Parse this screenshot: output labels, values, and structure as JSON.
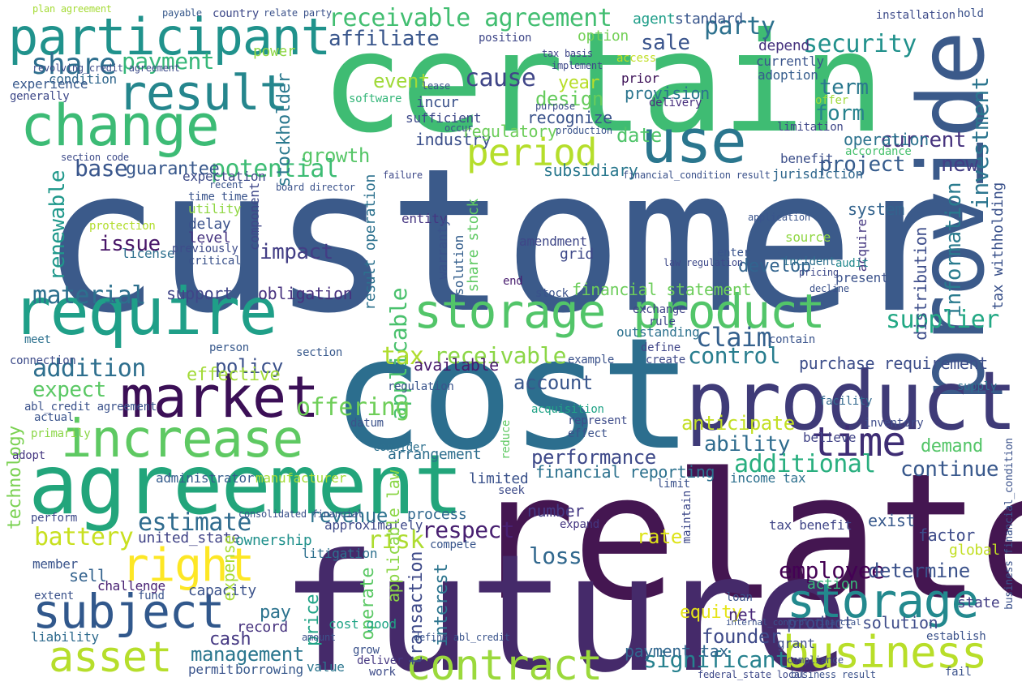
{
  "words": [
    {
      "text": "customer",
      "color": "#3b5a8a"
    },
    {
      "text": "cost",
      "color": "#2c6e8e"
    },
    {
      "text": "relate",
      "color": "#441651"
    },
    {
      "text": "future",
      "color": "#452a6a"
    },
    {
      "text": "certain",
      "color": "#3fbc73"
    },
    {
      "text": "provide",
      "color": "#3b5a8a"
    },
    {
      "text": "agreement",
      "color": "#22a57b"
    },
    {
      "text": "product",
      "color": "#3f3b78"
    },
    {
      "text": "storage product",
      "color": "#52c569"
    },
    {
      "text": "require",
      "color": "#1f9f88"
    },
    {
      "text": "market",
      "color": "#3b0f56"
    },
    {
      "text": "increase",
      "color": "#5ec962"
    },
    {
      "text": "participant",
      "color": "#20928c"
    },
    {
      "text": "change",
      "color": "#3cbb75"
    },
    {
      "text": "result",
      "color": "#25868d"
    },
    {
      "text": "business",
      "color": "#b8de29"
    },
    {
      "text": "storage",
      "color": "#23898e"
    },
    {
      "text": "subject",
      "color": "#31588c"
    },
    {
      "text": "contract",
      "color": "#9bd93c"
    },
    {
      "text": "asset",
      "color": "#b6de2b"
    },
    {
      "text": "right",
      "color": "#fde725"
    },
    {
      "text": "use",
      "color": "#2a768e"
    },
    {
      "text": "period",
      "color": "#b5de2b"
    },
    {
      "text": "time",
      "color": "#3e2d74"
    },
    {
      "text": "share",
      "color": "#2e6f8e"
    },
    {
      "text": "payment",
      "color": "#35b779"
    },
    {
      "text": "receivable agreement",
      "color": "#42be71"
    },
    {
      "text": "security",
      "color": "#21918c"
    },
    {
      "text": "party",
      "color": "#2d718e"
    },
    {
      "text": "affiliate",
      "color": "#39568c"
    },
    {
      "text": "sale",
      "color": "#3a548c"
    },
    {
      "text": "investment",
      "color": "#2b758e"
    },
    {
      "text": "current",
      "color": "#46337e"
    },
    {
      "text": "term",
      "color": "#2a788e"
    },
    {
      "text": "form",
      "color": "#26828e"
    },
    {
      "text": "cause",
      "color": "#404688"
    },
    {
      "text": "event",
      "color": "#a0da39"
    },
    {
      "text": "design",
      "color": "#66cc5d"
    },
    {
      "text": "year",
      "color": "#b8de29"
    },
    {
      "text": "recognize",
      "color": "#3a538b"
    },
    {
      "text": "growth",
      "color": "#56c667"
    },
    {
      "text": "potential",
      "color": "#3dbc74"
    },
    {
      "text": "base",
      "color": "#39568c"
    },
    {
      "text": "guarantee",
      "color": "#38588c"
    },
    {
      "text": "renewable",
      "color": "#1f988b"
    },
    {
      "text": "issue",
      "color": "#481668"
    },
    {
      "text": "impact",
      "color": "#433e85"
    },
    {
      "text": "material",
      "color": "#2d708e"
    },
    {
      "text": "support",
      "color": "#404588"
    },
    {
      "text": "obligation",
      "color": "#46317e"
    },
    {
      "text": "applicable",
      "color": "#4ac16d"
    },
    {
      "text": "date",
      "color": "#50c46a"
    },
    {
      "text": "project",
      "color": "#365c8d"
    },
    {
      "text": "new",
      "color": "#433e85"
    },
    {
      "text": "supplier",
      "color": "#22a884"
    },
    {
      "text": "claim",
      "color": "#34608d"
    },
    {
      "text": "control",
      "color": "#287d8e"
    },
    {
      "text": "tax",
      "color": "#b0dd2f"
    },
    {
      "text": "receivable",
      "color": "#8bd646"
    },
    {
      "text": "policy",
      "color": "#3b518b"
    },
    {
      "text": "addition",
      "color": "#2e6f8e"
    },
    {
      "text": "expect",
      "color": "#5ac864"
    },
    {
      "text": "effective",
      "color": "#a2da37"
    },
    {
      "text": "purchase requirement",
      "color": "#3d4e8a"
    },
    {
      "text": "information",
      "color": "#297b8e"
    },
    {
      "text": "distribution",
      "color": "#3d4d8a"
    },
    {
      "text": "financial statement",
      "color": "#6ccd5a"
    },
    {
      "text": "operation",
      "color": "#2c738e"
    },
    {
      "text": "system",
      "color": "#33638d"
    },
    {
      "text": "develop",
      "color": "#32648e"
    },
    {
      "text": "ability",
      "color": "#2f6c8e"
    },
    {
      "text": "demand",
      "color": "#54c568"
    },
    {
      "text": "anticipate",
      "color": "#c2df23"
    },
    {
      "text": "additional",
      "color": "#29af7f"
    },
    {
      "text": "continue",
      "color": "#38588c"
    },
    {
      "text": "performance",
      "color": "#3e4989"
    },
    {
      "text": "financial reporting",
      "color": "#2c718e"
    },
    {
      "text": "offering",
      "color": "#6ece58"
    },
    {
      "text": "account",
      "color": "#39568c"
    },
    {
      "text": "available",
      "color": "#481a6c"
    },
    {
      "text": "revenue",
      "color": "#2c728e"
    },
    {
      "text": "respect",
      "color": "#482071"
    },
    {
      "text": "risk",
      "color": "#addc30"
    },
    {
      "text": "loss",
      "color": "#31688e"
    },
    {
      "text": "estimate",
      "color": "#2f6b8e"
    },
    {
      "text": "battery",
      "color": "#c8e020"
    },
    {
      "text": "technology",
      "color": "#7ad151"
    },
    {
      "text": "employee",
      "color": "#440154"
    },
    {
      "text": "determine",
      "color": "#3b528b"
    },
    {
      "text": "equity",
      "color": "#e5e419"
    },
    {
      "text": "founder",
      "color": "#3e4a89"
    },
    {
      "text": "management",
      "color": "#2a768e"
    },
    {
      "text": "significant",
      "color": "#26818e"
    },
    {
      "text": "payment tax",
      "color": "#31678e"
    },
    {
      "text": "product solution",
      "color": "#3e4c8a"
    },
    {
      "text": "interest",
      "color": "#2b748e"
    },
    {
      "text": "operate",
      "color": "#5ac864"
    },
    {
      "text": "transaction",
      "color": "#3e4a89"
    },
    {
      "text": "price",
      "color": "#20a386"
    },
    {
      "text": "cash",
      "color": "#453882"
    },
    {
      "text": "pay",
      "color": "#2c738e"
    },
    {
      "text": "record",
      "color": "#46327e"
    },
    {
      "text": "capacity",
      "color": "#3b528b"
    },
    {
      "text": "united_state",
      "color": "#414487"
    },
    {
      "text": "sell",
      "color": "#33628d"
    },
    {
      "text": "member",
      "color": "#3a548c"
    },
    {
      "text": "liability",
      "color": "#2f6b8e"
    },
    {
      "text": "challenge",
      "color": "#482173"
    },
    {
      "text": "manufacturer",
      "color": "#a5db36"
    },
    {
      "text": "administrator",
      "color": "#365d8d"
    },
    {
      "text": "limited",
      "color": "#3b528b"
    },
    {
      "text": "number",
      "color": "#443983"
    },
    {
      "text": "process",
      "color": "#31688e"
    },
    {
      "text": "ownership",
      "color": "#21918c"
    },
    {
      "text": "expense",
      "color": "#a8db34"
    },
    {
      "text": "arrangement",
      "color": "#2e6e8e"
    },
    {
      "text": "standard",
      "color": "#39568c"
    },
    {
      "text": "agent",
      "color": "#1f9e89"
    },
    {
      "text": "depend",
      "color": "#46327e"
    },
    {
      "text": "position",
      "color": "#3f4788"
    },
    {
      "text": "option",
      "color": "#73d056"
    },
    {
      "text": "power",
      "color": "#8fd744"
    },
    {
      "text": "condition",
      "color": "#31688e"
    },
    {
      "text": "experience",
      "color": "#38598c"
    },
    {
      "text": "stockholder",
      "color": "#2a788e"
    },
    {
      "text": "provision",
      "color": "#2b758e"
    },
    {
      "text": "incur",
      "color": "#3b528b"
    },
    {
      "text": "sufficient",
      "color": "#3e4989"
    },
    {
      "text": "software",
      "color": "#34b679"
    },
    {
      "text": "industry",
      "color": "#3c508b"
    },
    {
      "text": "regulatory",
      "color": "#6ccd5a"
    },
    {
      "text": "subsidiary",
      "color": "#2a788e"
    },
    {
      "text": "delay",
      "color": "#3b528b"
    },
    {
      "text": "level",
      "color": "#463480"
    },
    {
      "text": "license",
      "color": "#2d708e"
    },
    {
      "text": "utility",
      "color": "#90d743"
    },
    {
      "text": "protection",
      "color": "#b2dd2d"
    },
    {
      "text": "component",
      "color": "#3f4889"
    },
    {
      "text": "expectation",
      "color": "#3e4a89"
    },
    {
      "text": "entity",
      "color": "#453581"
    },
    {
      "text": "warranty",
      "color": "#3b528b"
    },
    {
      "text": "grid",
      "color": "#3e4989"
    },
    {
      "text": "amendment",
      "color": "#3f4788"
    },
    {
      "text": "solution",
      "color": "#355f8d"
    },
    {
      "text": "stock",
      "color": "#3b528b"
    },
    {
      "text": "end",
      "color": "#481d6f"
    },
    {
      "text": "access",
      "color": "#c0df25"
    },
    {
      "text": "rule",
      "color": "#3e4989"
    },
    {
      "text": "outstanding",
      "color": "#2c718e"
    },
    {
      "text": "exchange",
      "color": "#404588"
    },
    {
      "text": "delivery",
      "color": "#472f7d"
    },
    {
      "text": "currently",
      "color": "#3a548c"
    },
    {
      "text": "adoption",
      "color": "#365d8d"
    },
    {
      "text": "prior",
      "color": "#3b0f56"
    },
    {
      "text": "offer",
      "color": "#9fda3a"
    },
    {
      "text": "benefit",
      "color": "#3c4f8a"
    },
    {
      "text": "limitation",
      "color": "#3f4788"
    },
    {
      "text": "jurisdiction",
      "color": "#31688e"
    },
    {
      "text": "accordance",
      "color": "#48c16e"
    },
    {
      "text": "enter",
      "color": "#3a548c"
    },
    {
      "text": "acquire",
      "color": "#453781"
    },
    {
      "text": "source",
      "color": "#90d743"
    },
    {
      "text": "present",
      "color": "#3b528b"
    },
    {
      "text": "incident",
      "color": "#2d708e"
    },
    {
      "text": "audit",
      "color": "#23898e"
    },
    {
      "text": "tax withholding",
      "color": "#3b528b"
    },
    {
      "text": "exist",
      "color": "#38598c"
    },
    {
      "text": "factor",
      "color": "#3e4c8a"
    },
    {
      "text": "global",
      "color": "#c2df23"
    },
    {
      "text": "action",
      "color": "#37b878"
    },
    {
      "text": "state",
      "color": "#433e85"
    },
    {
      "text": "establish",
      "color": "#3b528b"
    },
    {
      "text": "net",
      "color": "#482878"
    },
    {
      "text": "grant",
      "color": "#3e4c8a"
    },
    {
      "text": "tax benefit",
      "color": "#404688"
    },
    {
      "text": "income tax",
      "color": "#2d708e"
    },
    {
      "text": "rate",
      "color": "#dde318"
    },
    {
      "text": "cost good",
      "color": "#20a486"
    },
    {
      "text": "loan",
      "color": "#3a548c"
    },
    {
      "text": "compete",
      "color": "#39568c"
    },
    {
      "text": "litigation",
      "color": "#2d708e"
    },
    {
      "text": "approximately",
      "color": "#3e4989"
    },
    {
      "text": "permit",
      "color": "#3a548c"
    },
    {
      "text": "borrowing",
      "color": "#38598c"
    },
    {
      "text": "value",
      "color": "#2b758e"
    },
    {
      "text": "grow",
      "color": "#3b528b"
    },
    {
      "text": "work",
      "color": "#3e4c8a"
    },
    {
      "text": "deliver",
      "color": "#453781"
    },
    {
      "text": "datum",
      "color": "#3b528b"
    },
    {
      "text": "regulation",
      "color": "#3a548c"
    },
    {
      "text": "believe",
      "color": "#414487"
    },
    {
      "text": "inventory",
      "color": "#3e4c8a"
    },
    {
      "text": "facility",
      "color": "#31688e"
    },
    {
      "text": "supply",
      "color": "#2d708e"
    },
    {
      "text": "extent",
      "color": "#3b528b"
    },
    {
      "text": "perform",
      "color": "#3e4989"
    },
    {
      "text": "actual",
      "color": "#3a548c"
    },
    {
      "text": "adopt",
      "color": "#453781"
    },
    {
      "text": "connection",
      "color": "#3e4c8a"
    },
    {
      "text": "primarily",
      "color": "#8bd646"
    },
    {
      "text": "abl_credit agreement",
      "color": "#3b528b"
    },
    {
      "text": "meet",
      "color": "#2c718e"
    },
    {
      "text": "generally",
      "color": "#3e4989"
    },
    {
      "text": "fund",
      "color": "#3a548c"
    },
    {
      "text": "section",
      "color": "#38598c"
    },
    {
      "text": "seek",
      "color": "#3e4c8a"
    },
    {
      "text": "reduce",
      "color": "#5ec962"
    },
    {
      "text": "effect",
      "color": "#3b528b"
    },
    {
      "text": "consider",
      "color": "#2d708e"
    },
    {
      "text": "example",
      "color": "#3b528b"
    },
    {
      "text": "create",
      "color": "#3e4989"
    },
    {
      "text": "define",
      "color": "#404688"
    },
    {
      "text": "contain",
      "color": "#3a548c"
    },
    {
      "text": "person",
      "color": "#38598c"
    },
    {
      "text": "acquisition",
      "color": "#20a386"
    },
    {
      "text": "represent",
      "color": "#3e4c8a"
    },
    {
      "text": "limit",
      "color": "#3b528b"
    },
    {
      "text": "maintain",
      "color": "#3e4989"
    },
    {
      "text": "expand",
      "color": "#453781"
    },
    {
      "text": "previously",
      "color": "#3e4c8a"
    },
    {
      "text": "critical",
      "color": "#3b528b"
    },
    {
      "text": "time time",
      "color": "#3a548c"
    },
    {
      "text": "country",
      "color": "#3e4989"
    },
    {
      "text": "payable",
      "color": "#38598c"
    },
    {
      "text": "relate party",
      "color": "#3b528b"
    },
    {
      "text": "plan agreement",
      "color": "#a5db36"
    },
    {
      "text": "installation",
      "color": "#3e4c8a"
    },
    {
      "text": "hold",
      "color": "#3b528b"
    },
    {
      "text": "tax basis",
      "color": "#404688"
    },
    {
      "text": "implement",
      "color": "#3e4989"
    },
    {
      "text": "board director",
      "color": "#3b528b"
    },
    {
      "text": "section code",
      "color": "#3e4c8a"
    },
    {
      "text": "financial_condition result",
      "color": "#3b528b"
    },
    {
      "text": "failure",
      "color": "#3e4989"
    },
    {
      "text": "production",
      "color": "#3a548c"
    },
    {
      "text": "lease",
      "color": "#3b528b"
    },
    {
      "text": "purpose",
      "color": "#3e4c8a"
    },
    {
      "text": "occur",
      "color": "#3b528b"
    },
    {
      "text": "law regulation",
      "color": "#3e4989"
    },
    {
      "text": "application",
      "color": "#3a548c"
    },
    {
      "text": "share stock",
      "color": "#5ec962"
    },
    {
      "text": "applicable law",
      "color": "#8bd646"
    },
    {
      "text": "consolidated financial",
      "color": "#3b528b"
    },
    {
      "text": "revolving_credit agreement",
      "color": "#3e4c8a"
    },
    {
      "text": "business result",
      "color": "#3b528b"
    },
    {
      "text": "federal_state local",
      "color": "#3e4989"
    },
    {
      "text": "define abl_credit",
      "color": "#3a548c"
    },
    {
      "text": "internal_control financial",
      "color": "#3b528b"
    },
    {
      "text": "compliance",
      "color": "#3e4c8a"
    },
    {
      "text": "fail",
      "color": "#3b528b"
    },
    {
      "text": "pricing",
      "color": "#3e4989"
    },
    {
      "text": "decline",
      "color": "#3b528b"
    },
    {
      "text": "recent",
      "color": "#3a548c"
    },
    {
      "text": "amount",
      "color": "#3b528b"
    },
    {
      "text": "result operation",
      "color": "#2c718e"
    },
    {
      "text": "business financial_condition",
      "color": "#3b528b"
    }
  ]
}
